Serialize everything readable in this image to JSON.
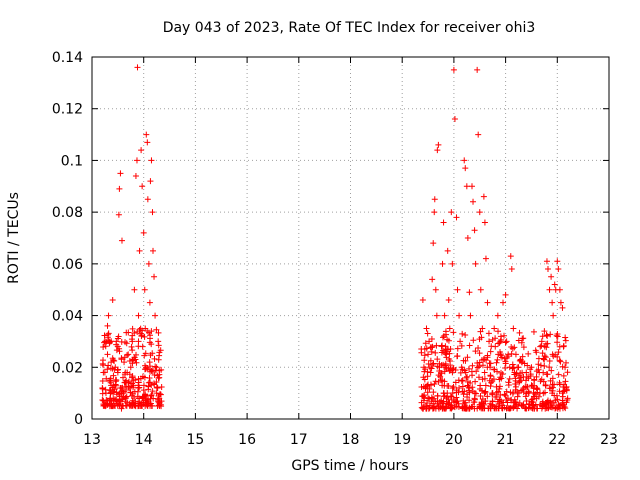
{
  "chart_data": {
    "type": "scatter",
    "title": "Day 043 of 2023, Rate Of TEC Index for receiver ohi3",
    "xlabel": "GPS time / hours",
    "ylabel": "ROTI / TECUs",
    "xlim": [
      13,
      23
    ],
    "ylim": [
      0,
      0.14
    ],
    "xticks": [
      "13",
      "14",
      "15",
      "16",
      "17",
      "18",
      "19",
      "20",
      "21",
      "22",
      "23"
    ],
    "yticks": [
      "0",
      "0.02",
      "0.04",
      "0.06",
      "0.08",
      "0.1",
      "0.12",
      "0.14"
    ],
    "grid": true,
    "marker": "+",
    "color": "#ff0000",
    "series": [
      {
        "name": "ROTI",
        "points": [
          [
            13.2,
            0.012
          ],
          [
            13.22,
            0.018
          ],
          [
            13.25,
            0.03
          ],
          [
            13.27,
            0.01
          ],
          [
            13.3,
            0.025
          ],
          [
            13.3,
            0.036
          ],
          [
            13.32,
            0.04
          ],
          [
            13.35,
            0.015
          ],
          [
            13.37,
            0.022
          ],
          [
            13.4,
            0.046
          ],
          [
            13.42,
            0.013
          ],
          [
            13.45,
            0.02
          ],
          [
            13.47,
            0.03
          ],
          [
            13.5,
            0.018
          ],
          [
            13.52,
            0.079
          ],
          [
            13.53,
            0.089
          ],
          [
            13.55,
            0.095
          ],
          [
            13.55,
            0.012
          ],
          [
            13.57,
            0.004
          ],
          [
            13.58,
            0.069
          ],
          [
            13.6,
            0.016
          ],
          [
            13.62,
            0.022
          ],
          [
            13.65,
            0.014
          ],
          [
            13.68,
            0.018
          ],
          [
            13.7,
            0.025
          ],
          [
            13.72,
            0.012
          ],
          [
            13.75,
            0.02
          ],
          [
            13.78,
            0.03
          ],
          [
            13.8,
            0.015
          ],
          [
            13.82,
            0.05
          ],
          [
            13.85,
            0.094
          ],
          [
            13.87,
            0.1
          ],
          [
            13.88,
            0.136
          ],
          [
            13.9,
            0.04
          ],
          [
            13.92,
            0.065
          ],
          [
            13.95,
            0.104
          ],
          [
            13.97,
            0.09
          ],
          [
            13.98,
            0.028
          ],
          [
            14.0,
            0.072
          ],
          [
            14.02,
            0.05
          ],
          [
            14.03,
            0.035
          ],
          [
            14.05,
            0.11
          ],
          [
            14.07,
            0.107
          ],
          [
            14.08,
            0.085
          ],
          [
            14.1,
            0.06
          ],
          [
            14.12,
            0.045
          ],
          [
            14.13,
            0.092
          ],
          [
            14.15,
            0.1
          ],
          [
            14.17,
            0.08
          ],
          [
            14.18,
            0.065
          ],
          [
            14.2,
            0.055
          ],
          [
            14.22,
            0.04
          ],
          [
            14.25,
            0.02
          ],
          [
            14.27,
            0.012
          ],
          [
            14.28,
            0.03
          ],
          [
            14.3,
            0.008
          ],
          [
            14.3,
            0.016
          ],
          [
            13.35,
            0.008
          ],
          [
            13.6,
            0.01
          ],
          [
            13.9,
            0.012
          ],
          [
            14.1,
            0.014
          ],
          [
            14.25,
            0.01
          ],
          [
            19.4,
            0.046
          ],
          [
            19.42,
            0.02
          ],
          [
            19.45,
            0.012
          ],
          [
            19.47,
            0.035
          ],
          [
            19.5,
            0.025
          ],
          [
            19.52,
            0.03
          ],
          [
            19.55,
            0.018
          ],
          [
            19.58,
            0.054
          ],
          [
            19.6,
            0.068
          ],
          [
            19.62,
            0.08
          ],
          [
            19.63,
            0.085
          ],
          [
            19.65,
            0.05
          ],
          [
            19.67,
            0.04
          ],
          [
            19.68,
            0.104
          ],
          [
            19.7,
            0.106
          ],
          [
            19.72,
            0.02
          ],
          [
            19.75,
            0.015
          ],
          [
            19.78,
            0.06
          ],
          [
            19.8,
            0.076
          ],
          [
            19.82,
            0.04
          ],
          [
            19.85,
            0.025
          ],
          [
            19.88,
            0.065
          ],
          [
            19.9,
            0.046
          ],
          [
            19.92,
            0.035
          ],
          [
            19.95,
            0.08
          ],
          [
            19.97,
            0.06
          ],
          [
            20.0,
            0.135
          ],
          [
            20.02,
            0.116
          ],
          [
            20.05,
            0.078
          ],
          [
            20.07,
            0.05
          ],
          [
            20.1,
            0.04
          ],
          [
            20.12,
            0.03
          ],
          [
            20.15,
            0.02
          ],
          [
            20.17,
            0.015
          ],
          [
            20.2,
            0.1
          ],
          [
            20.22,
            0.097
          ],
          [
            20.25,
            0.09
          ],
          [
            20.27,
            0.07
          ],
          [
            20.3,
            0.049
          ],
          [
            20.32,
            0.04
          ],
          [
            20.35,
            0.09
          ],
          [
            20.37,
            0.084
          ],
          [
            20.4,
            0.073
          ],
          [
            20.42,
            0.06
          ],
          [
            20.45,
            0.135
          ],
          [
            20.47,
            0.11
          ],
          [
            20.5,
            0.08
          ],
          [
            20.52,
            0.05
          ],
          [
            20.55,
            0.035
          ],
          [
            20.58,
            0.086
          ],
          [
            20.6,
            0.076
          ],
          [
            20.62,
            0.062
          ],
          [
            20.65,
            0.045
          ],
          [
            20.68,
            0.03
          ],
          [
            20.7,
            0.02
          ],
          [
            20.72,
            0.014
          ],
          [
            20.75,
            0.01
          ],
          [
            20.78,
            0.035
          ],
          [
            20.8,
            0.028
          ],
          [
            20.85,
            0.04
          ],
          [
            20.9,
            0.03
          ],
          [
            20.95,
            0.045
          ],
          [
            21.0,
            0.048
          ],
          [
            21.02,
            0.03
          ],
          [
            21.05,
            0.025
          ],
          [
            21.08,
            0.02
          ],
          [
            21.1,
            0.063
          ],
          [
            21.12,
            0.058
          ],
          [
            21.15,
            0.035
          ],
          [
            21.2,
            0.025
          ],
          [
            21.25,
            0.02
          ],
          [
            21.3,
            0.015
          ],
          [
            21.35,
            0.012
          ],
          [
            21.4,
            0.018
          ],
          [
            21.45,
            0.01
          ],
          [
            21.5,
            0.02
          ],
          [
            21.55,
            0.015
          ],
          [
            21.6,
            0.012
          ],
          [
            21.65,
            0.018
          ],
          [
            21.7,
            0.03
          ],
          [
            21.75,
            0.034
          ],
          [
            21.8,
            0.061
          ],
          [
            21.82,
            0.058
          ],
          [
            21.85,
            0.05
          ],
          [
            21.88,
            0.055
          ],
          [
            21.9,
            0.045
          ],
          [
            21.92,
            0.04
          ],
          [
            21.95,
            0.052
          ],
          [
            21.97,
            0.05
          ],
          [
            22.0,
            0.061
          ],
          [
            22.02,
            0.058
          ],
          [
            22.05,
            0.05
          ],
          [
            22.07,
            0.045
          ],
          [
            22.1,
            0.043
          ],
          [
            22.12,
            0.028
          ],
          [
            22.15,
            0.02
          ],
          [
            22.17,
            0.012
          ],
          [
            22.2,
            0.008
          ],
          [
            19.5,
            0.008
          ],
          [
            19.8,
            0.01
          ],
          [
            20.1,
            0.012
          ],
          [
            20.4,
            0.008
          ],
          [
            20.7,
            0.005
          ],
          [
            21.0,
            0.009
          ],
          [
            21.3,
            0.011
          ],
          [
            21.6,
            0.008
          ],
          [
            21.9,
            0.01
          ],
          [
            22.1,
            0.01
          ]
        ]
      }
    ]
  }
}
